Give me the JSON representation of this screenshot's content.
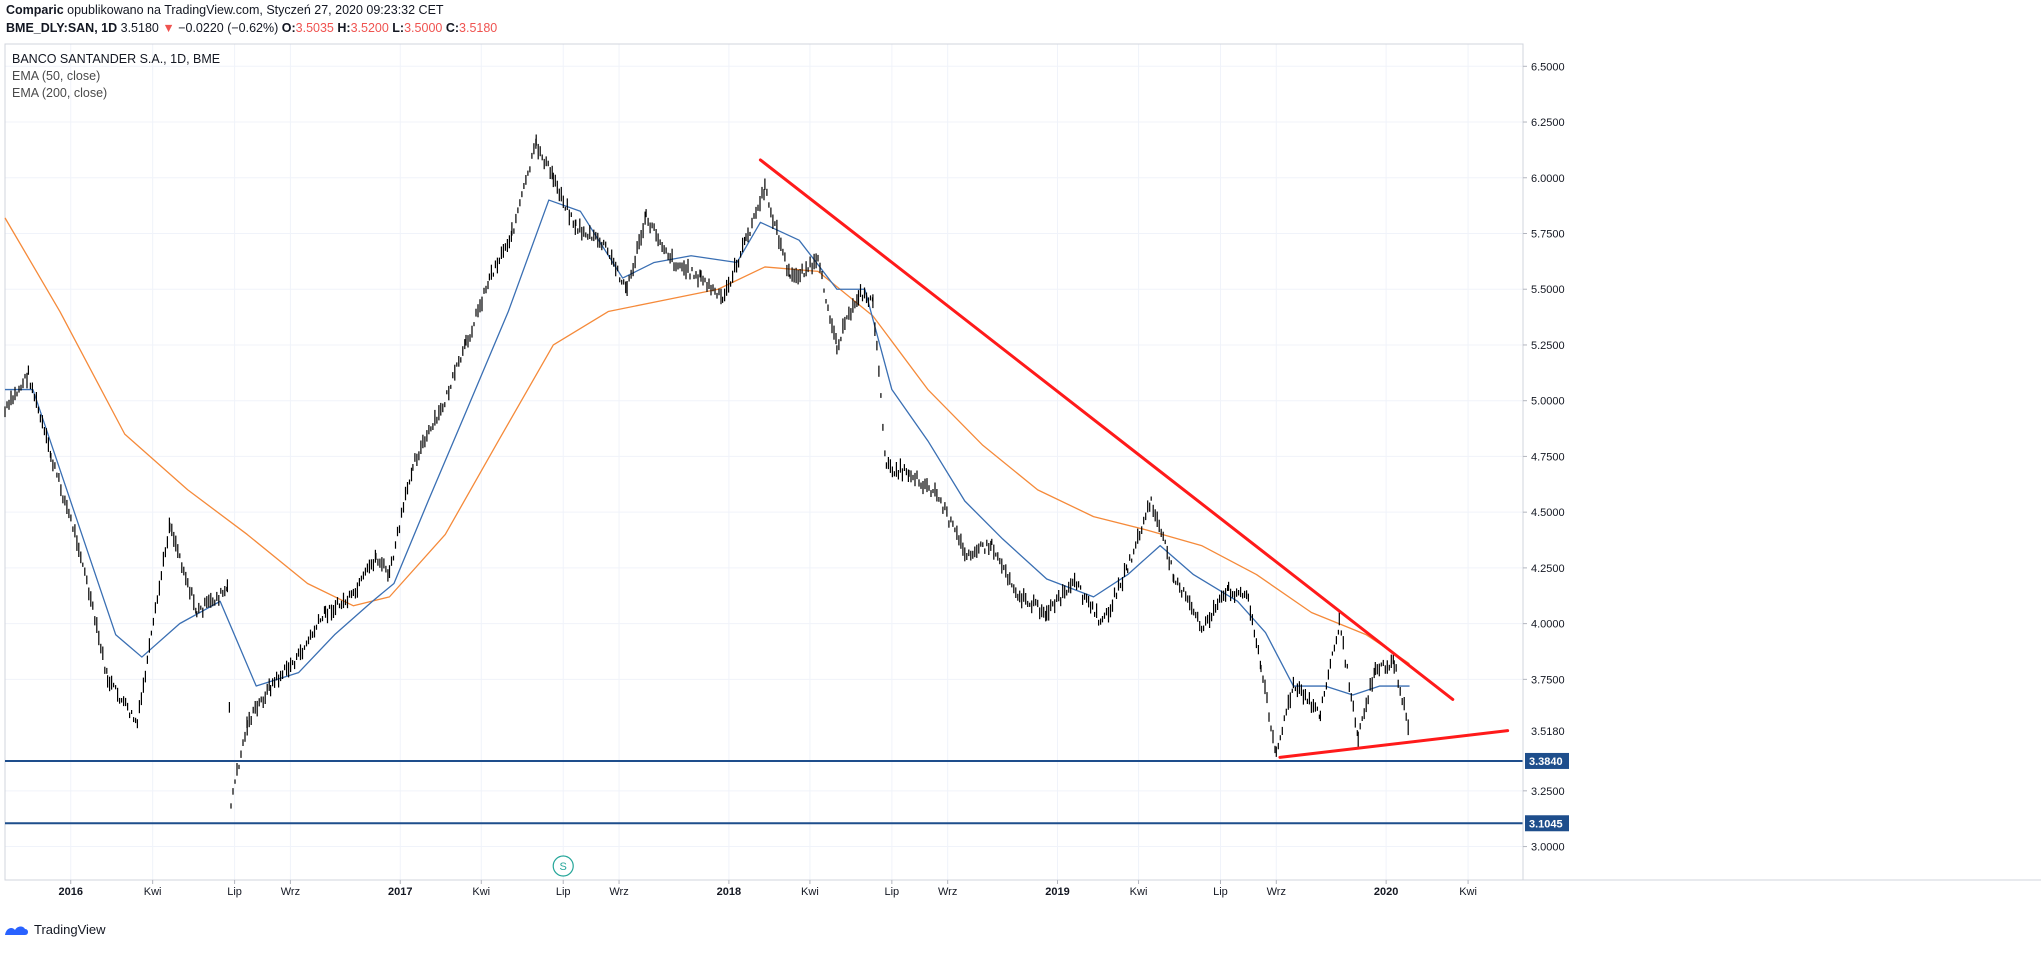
{
  "header": {
    "author": "Comparic",
    "published_text": "opublikowano na TradingView.com, Styczeń 27, 2020 09:23:32 CET",
    "symbol": "BME_DLY:SAN, 1D",
    "last": "3.5180",
    "change_arrow": "▼",
    "change": "−0.0220 (−0.62%)",
    "o_label": "O:",
    "o_value": "3.5035",
    "h_label": "H:",
    "h_value": "3.5200",
    "l_label": "L:",
    "l_value": "3.5000",
    "c_label": "C:",
    "c_value": "3.5180"
  },
  "legend": {
    "title": "BANCO SANTANDER S.A., 1D, BME",
    "ema50": "EMA (50, close)",
    "ema200": "EMA (200, close)"
  },
  "footer": {
    "brand": "TradingView"
  },
  "colors": {
    "candles": "#000000",
    "ema50": "#3a6fb3",
    "ema200": "#f58a3a",
    "trendline": "#ff1a1a",
    "support": "#1e4e8c",
    "grid": "#f0f3fa",
    "axis": "#787b86"
  },
  "chart_data": {
    "type": "line",
    "title": "BANCO SANTANDER S.A., 1D, BME",
    "ylim": [
      2.85,
      6.6
    ],
    "y_ticks": [
      "6.5000",
      "6.2500",
      "6.0000",
      "5.7500",
      "5.5000",
      "5.2500",
      "5.0000",
      "4.7500",
      "4.5000",
      "4.2500",
      "4.0000",
      "3.7500",
      "3.2500",
      "3.0000"
    ],
    "current_price_label": "3.5180",
    "x_labels": [
      "2016",
      "Kwi",
      "Lip",
      "Wrz",
      "2017",
      "Kwi",
      "Lip",
      "Wrz",
      "2018",
      "Kwi",
      "Lip",
      "Wrz",
      "2019",
      "Kwi",
      "Lip",
      "Wrz",
      "2020",
      "Kwi"
    ],
    "x_label_dates": [
      "2016-01-01",
      "2016-04-01",
      "2016-07-01",
      "2016-09-01",
      "2017-01-01",
      "2017-04-01",
      "2017-07-01",
      "2017-09-01",
      "2018-01-01",
      "2018-04-01",
      "2018-07-01",
      "2018-09-01",
      "2019-01-01",
      "2019-04-01",
      "2019-07-01",
      "2019-09-01",
      "2020-01-01",
      "2020-04-01"
    ],
    "x_range": [
      "2015-10-20",
      "2020-06-01"
    ],
    "series": [
      {
        "name": "price",
        "x": [
          "2015-10-20",
          "2015-11-15",
          "2015-12-10",
          "2016-01-10",
          "2016-02-11",
          "2016-03-15",
          "2016-04-20",
          "2016-05-20",
          "2016-06-23",
          "2016-06-27",
          "2016-07-15",
          "2016-08-10",
          "2016-09-10",
          "2016-10-10",
          "2016-11-10",
          "2016-12-05",
          "2016-12-20",
          "2017-01-15",
          "2017-02-15",
          "2017-03-15",
          "2017-04-10",
          "2017-05-05",
          "2017-06-01",
          "2017-06-20",
          "2017-07-15",
          "2017-08-15",
          "2017-09-10",
          "2017-10-01",
          "2017-11-01",
          "2017-12-01",
          "2017-12-25",
          "2018-01-20",
          "2018-02-10",
          "2018-03-10",
          "2018-04-10",
          "2018-05-01",
          "2018-05-25",
          "2018-06-10",
          "2018-06-25",
          "2018-07-20",
          "2018-08-20",
          "2018-09-20",
          "2018-10-20",
          "2018-11-20",
          "2018-12-20",
          "2019-01-20",
          "2019-02-20",
          "2019-03-20",
          "2019-04-15",
          "2019-05-10",
          "2019-06-10",
          "2019-07-10",
          "2019-08-01",
          "2019-08-15",
          "2019-09-01",
          "2019-09-20",
          "2019-10-20",
          "2019-11-10",
          "2019-12-01",
          "2019-12-20",
          "2020-01-10",
          "2020-01-27"
        ],
        "values": [
          4.95,
          5.12,
          4.75,
          4.35,
          3.75,
          3.55,
          4.45,
          4.05,
          4.15,
          3.2,
          3.55,
          3.72,
          3.85,
          4.05,
          4.12,
          4.3,
          4.22,
          4.72,
          4.95,
          5.25,
          5.55,
          5.75,
          6.15,
          6.0,
          5.78,
          5.7,
          5.5,
          5.82,
          5.62,
          5.55,
          5.45,
          5.72,
          5.95,
          5.55,
          5.62,
          5.25,
          5.48,
          5.45,
          4.7,
          4.68,
          4.58,
          4.32,
          4.35,
          4.12,
          4.05,
          4.18,
          4.0,
          4.25,
          4.55,
          4.22,
          3.98,
          4.15,
          4.12,
          3.8,
          3.42,
          3.72,
          3.6,
          4.0,
          3.5,
          3.8,
          3.82,
          3.52
        ]
      },
      {
        "name": "EMA (50, close)",
        "x": [
          "2015-10-20",
          "2015-11-20",
          "2016-01-05",
          "2016-02-20",
          "2016-03-20",
          "2016-05-01",
          "2016-06-15",
          "2016-07-25",
          "2016-09-10",
          "2016-10-20",
          "2016-12-01",
          "2016-12-25",
          "2017-02-01",
          "2017-03-15",
          "2017-05-01",
          "2017-06-15",
          "2017-07-20",
          "2017-09-05",
          "2017-10-10",
          "2017-11-20",
          "2018-01-10",
          "2018-02-05",
          "2018-03-20",
          "2018-05-01",
          "2018-06-01",
          "2018-07-01",
          "2018-08-10",
          "2018-09-20",
          "2018-11-01",
          "2018-12-20",
          "2019-02-10",
          "2019-03-20",
          "2019-04-25",
          "2019-06-01",
          "2019-07-20",
          "2019-08-20",
          "2019-09-20",
          "2019-10-25",
          "2019-11-25",
          "2019-12-25",
          "2020-01-27"
        ],
        "values": [
          5.05,
          5.05,
          4.5,
          3.95,
          3.85,
          4.0,
          4.1,
          3.72,
          3.78,
          3.95,
          4.1,
          4.18,
          4.55,
          4.95,
          5.4,
          5.9,
          5.85,
          5.55,
          5.62,
          5.65,
          5.62,
          5.8,
          5.72,
          5.5,
          5.5,
          5.05,
          4.82,
          4.55,
          4.38,
          4.2,
          4.12,
          4.22,
          4.35,
          4.22,
          4.1,
          3.96,
          3.72,
          3.72,
          3.68,
          3.72,
          3.72
        ]
      },
      {
        "name": "EMA (200, close)",
        "x": [
          "2015-10-20",
          "2015-12-20",
          "2016-03-01",
          "2016-05-10",
          "2016-07-15",
          "2016-09-20",
          "2016-11-10",
          "2016-12-20",
          "2017-02-20",
          "2017-04-20",
          "2017-06-20",
          "2017-08-20",
          "2017-10-20",
          "2017-12-20",
          "2018-02-10",
          "2018-04-10",
          "2018-06-10",
          "2018-08-10",
          "2018-10-10",
          "2018-12-10",
          "2019-02-10",
          "2019-04-10",
          "2019-06-10",
          "2019-08-10",
          "2019-10-10",
          "2019-12-10",
          "2020-01-27"
        ],
        "values": [
          5.82,
          5.4,
          4.85,
          4.6,
          4.4,
          4.18,
          4.08,
          4.12,
          4.4,
          4.82,
          5.25,
          5.4,
          5.45,
          5.5,
          5.6,
          5.58,
          5.38,
          5.05,
          4.8,
          4.6,
          4.48,
          4.42,
          4.35,
          4.22,
          4.05,
          3.95,
          3.82
        ]
      }
    ],
    "trendlines": [
      {
        "from": [
          "2018-02-05",
          6.08
        ],
        "to": [
          "2020-03-15",
          3.66
        ]
      },
      {
        "from": [
          "2019-09-05",
          3.4
        ],
        "to": [
          "2020-05-15",
          3.52
        ]
      }
    ],
    "support_levels": [
      {
        "value": 3.384,
        "label": "3.3840"
      },
      {
        "value": 3.1045,
        "label": "3.1045"
      }
    ],
    "event_marker": {
      "date": "2017-07-01",
      "label": "S"
    }
  }
}
